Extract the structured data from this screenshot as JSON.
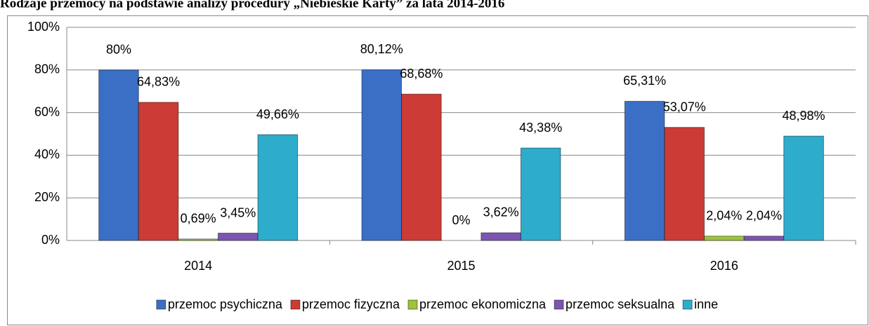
{
  "chart_data": {
    "type": "bar",
    "title": "Rodzaje przemocy na podstawie analizy procedury „Niebieskie Karty” za lata 2014-2016",
    "categories": [
      "2014",
      "2015",
      "2016"
    ],
    "series": [
      {
        "name": "przemoc psychiczna",
        "color": "#3b6fc6",
        "values": [
          80,
          80.12,
          65.31
        ],
        "value_labels": [
          "80%",
          "80,12%",
          "65,31%"
        ]
      },
      {
        "name": "przemoc fizyczna",
        "color": "#cc3b35",
        "values": [
          64.83,
          68.68,
          53.07
        ],
        "value_labels": [
          "64,83%",
          "68,68%",
          "53,07%"
        ]
      },
      {
        "name": "przemoc ekonomiczna",
        "color": "#9cc43c",
        "values": [
          0.69,
          0,
          2.04
        ],
        "value_labels": [
          "0,69%",
          "0%",
          "2,04%"
        ]
      },
      {
        "name": "przemoc seksualna",
        "color": "#7c55b0",
        "values": [
          3.45,
          3.62,
          2.04
        ],
        "value_labels": [
          "3,45%",
          "3,62%",
          "2,04%"
        ]
      },
      {
        "name": "inne",
        "color": "#2eaccb",
        "values": [
          49.66,
          43.38,
          48.98
        ],
        "value_labels": [
          "49,66%",
          "43,38%",
          "48,98%"
        ]
      }
    ],
    "ylim": [
      0,
      100
    ],
    "yticks": [
      {
        "value": 0,
        "label": "0%"
      },
      {
        "value": 20,
        "label": "20%"
      },
      {
        "value": 40,
        "label": "40%"
      },
      {
        "value": 60,
        "label": "60%"
      },
      {
        "value": 80,
        "label": "80%"
      },
      {
        "value": 100,
        "label": "100%"
      }
    ],
    "grid": true,
    "legend": "bottom"
  }
}
